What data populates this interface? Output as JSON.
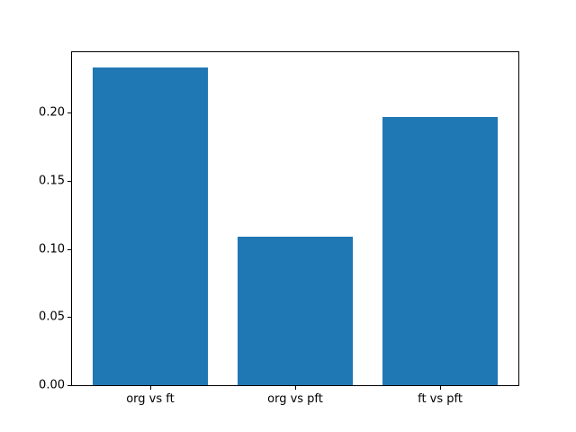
{
  "figure": {
    "background": "#ffffff",
    "plot_border_color": "#000000",
    "tick_color": "#000000",
    "text_color": "#000000"
  },
  "chart_data": {
    "type": "bar",
    "title": "",
    "xlabel": "",
    "ylabel": "",
    "categories": [
      "org vs ft",
      "org vs pft",
      "ft vs pft"
    ],
    "values": [
      0.233,
      0.109,
      0.197
    ],
    "bar_color": "#1f77b4",
    "bar_width": 0.8,
    "xlim": [
      -0.54,
      2.54
    ],
    "ylim": [
      0,
      0.2443
    ],
    "yticks": [
      0,
      0.05,
      0.1,
      0.15,
      0.2
    ],
    "ytick_labels": [
      "0.00",
      "0.05",
      "0.10",
      "0.15",
      "0.20"
    ],
    "grid": false,
    "legend": false
  }
}
